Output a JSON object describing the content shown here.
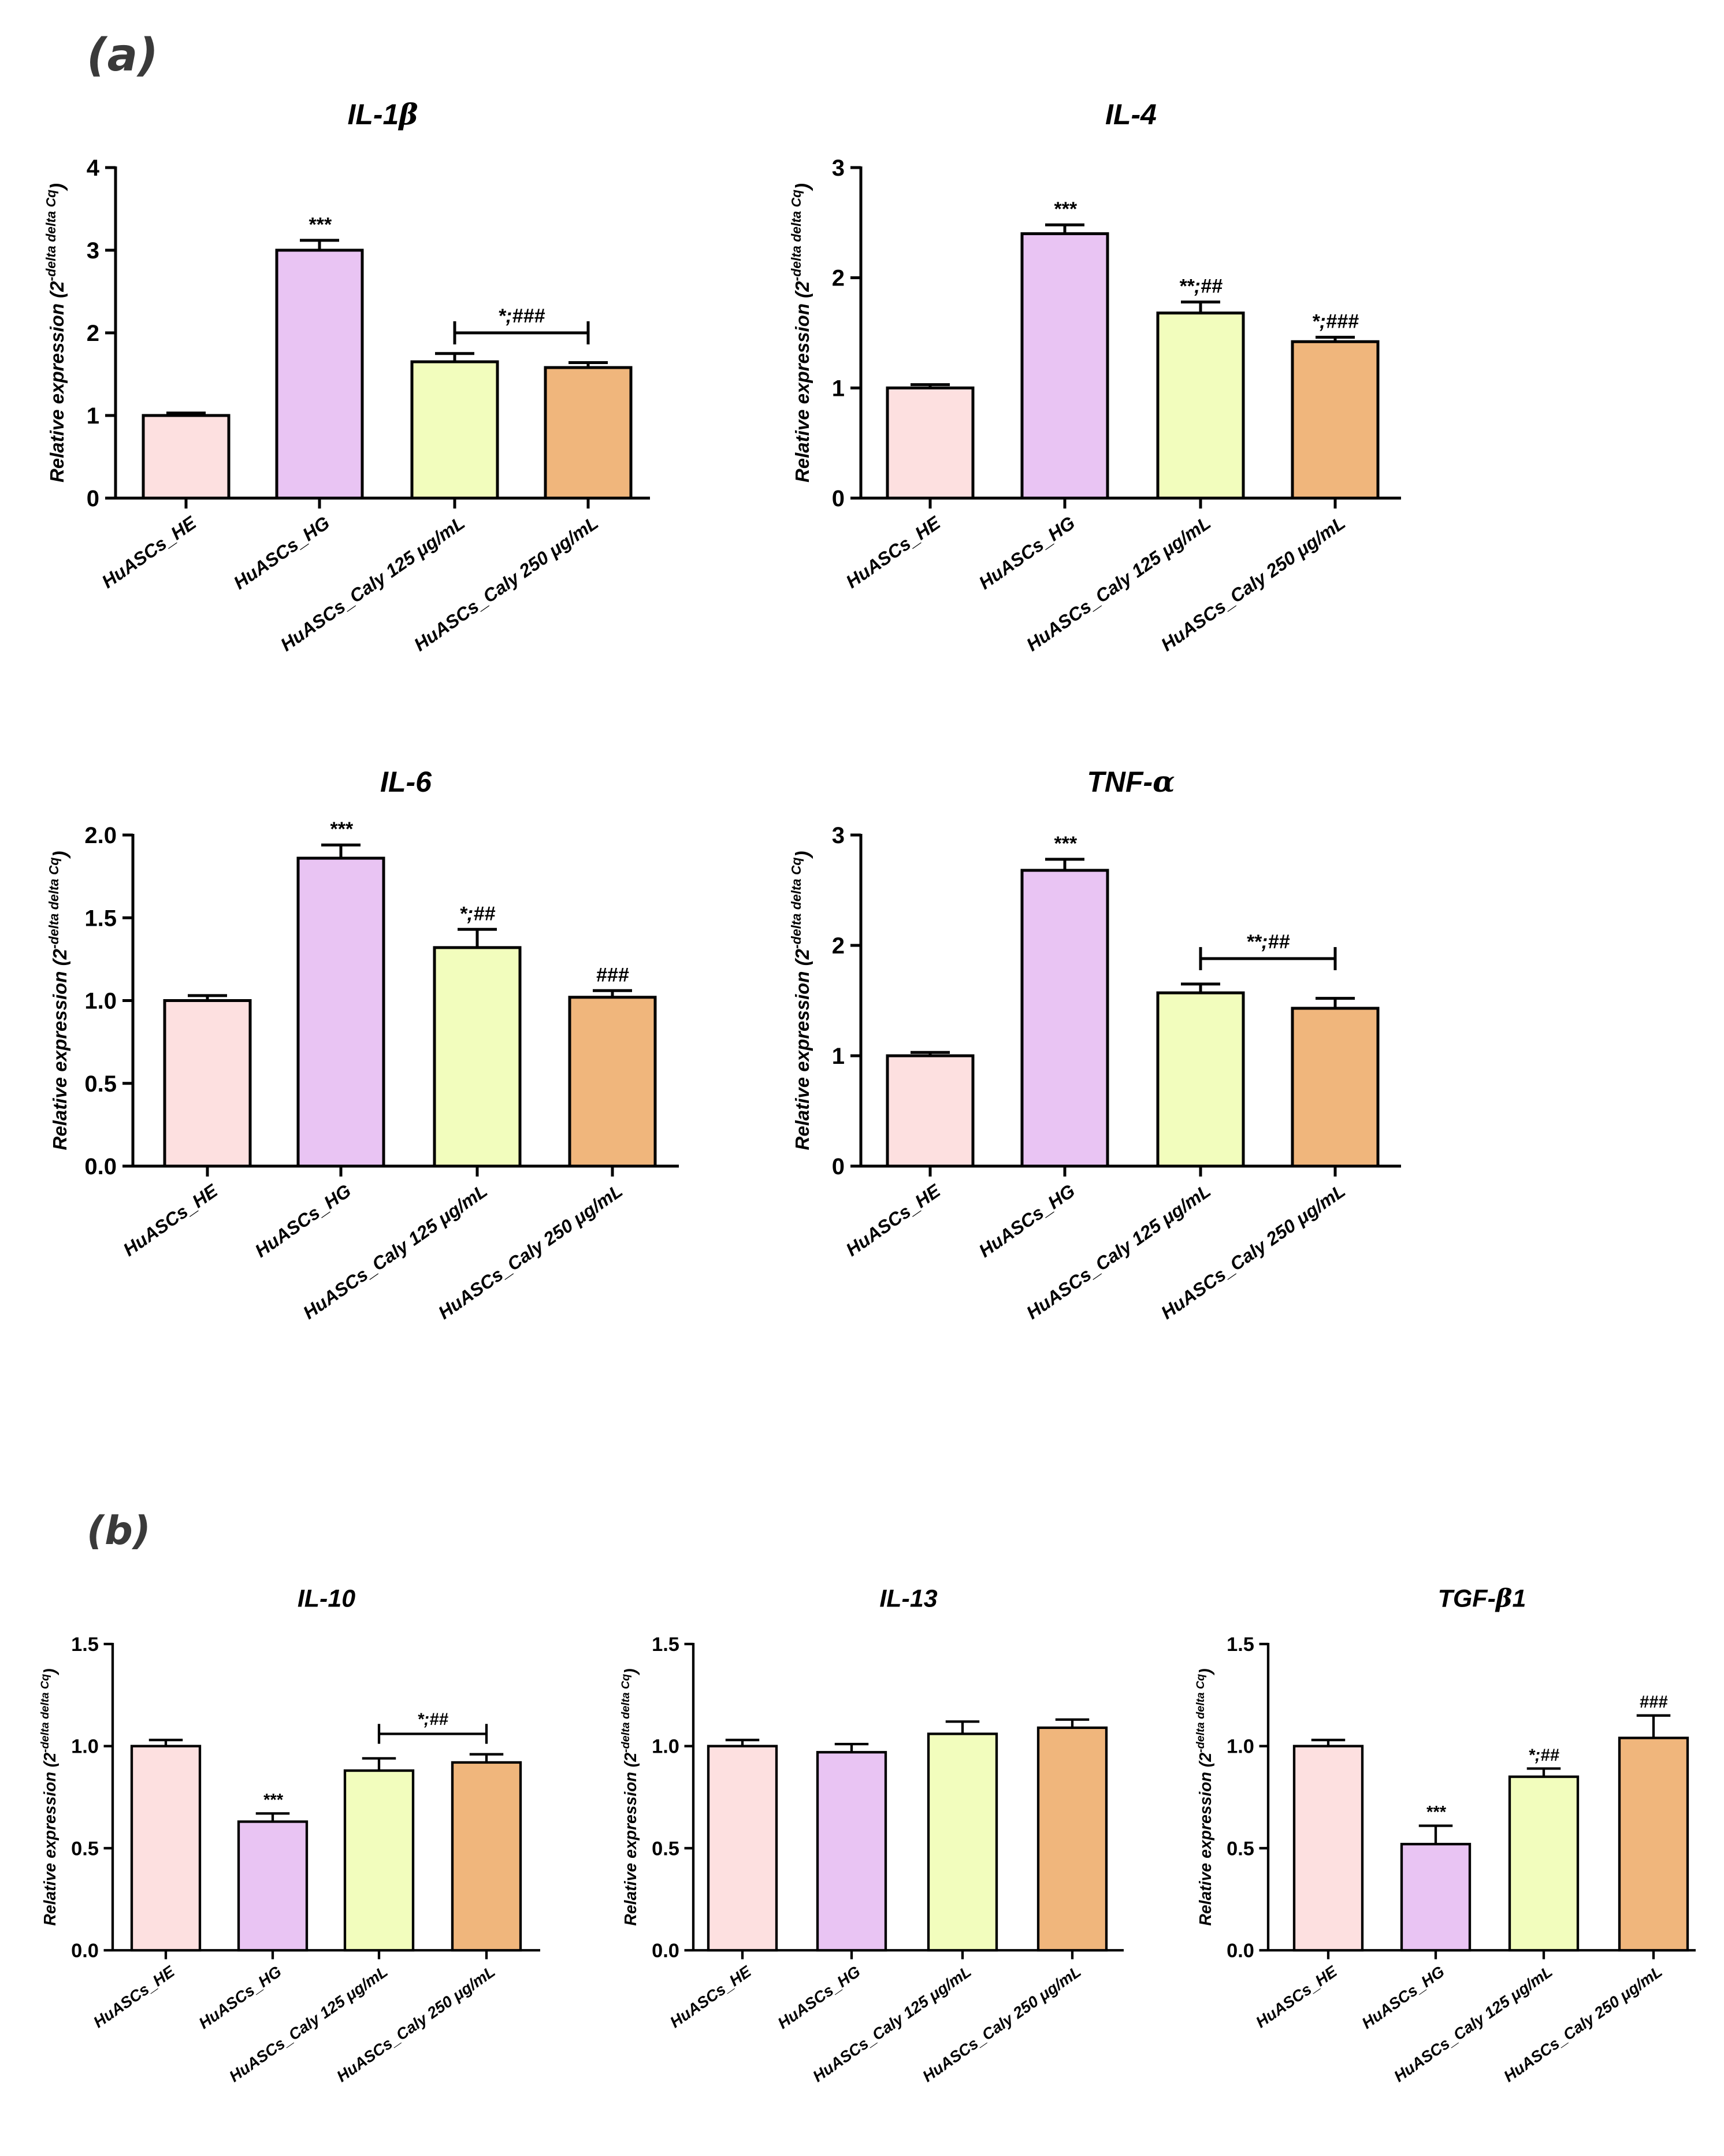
{
  "panels": [
    {
      "label": "(a)"
    },
    {
      "label": "(b)"
    }
  ],
  "colors": {
    "HE": "#fde0e0",
    "HG": "#e9c4f3",
    "C125": "#f2fdbd",
    "C250": "#f0b67c",
    "stroke": "#000000"
  },
  "chart_data": [
    {
      "type": "bar",
      "panel": "(a)",
      "title": "IL-1",
      "title_symbol": "β",
      "title_suffix": "",
      "ylabel_main": "Relative expression (2",
      "ylabel_sup": "-delta delta Cq",
      "ylabel_end": ")",
      "categories": [
        "HuASCs_HE",
        "HuASCs_HG",
        "HuASCs_Caly 125 μg/mL",
        "HuASCs_Caly 250 μg/mL"
      ],
      "values": [
        1.0,
        3.0,
        1.65,
        1.58
      ],
      "errors": [
        0.03,
        0.12,
        0.1,
        0.06
      ],
      "ylim": [
        0,
        4
      ],
      "yticks": [
        "0",
        "1",
        "2",
        "3",
        "4"
      ],
      "annotations": [
        "",
        "***",
        "",
        ""
      ],
      "bracket": {
        "from": 2,
        "to": 3,
        "y": 2.0,
        "text": "*;###"
      }
    },
    {
      "type": "bar",
      "panel": "(a)",
      "title": "IL-4",
      "title_symbol": "",
      "title_suffix": "",
      "ylabel_main": "Relative expression (2",
      "ylabel_sup": "-delta delta Cq",
      "ylabel_end": ")",
      "categories": [
        "HuASCs_HE",
        "HuASCs_HG",
        "HuASCs_Caly 125 μg/mL",
        "HuASCs_Caly 250 μg/mL"
      ],
      "values": [
        1.0,
        2.4,
        1.68,
        1.42
      ],
      "errors": [
        0.03,
        0.08,
        0.1,
        0.04
      ],
      "ylim": [
        0,
        3
      ],
      "yticks": [
        "0",
        "1",
        "2",
        "3"
      ],
      "annotations": [
        "",
        "***",
        "**;##",
        "*;###"
      ],
      "bracket": null
    },
    {
      "type": "bar",
      "panel": "(a)",
      "title": "IL-6",
      "title_symbol": "",
      "title_suffix": "",
      "ylabel_main": "Relative expression (2",
      "ylabel_sup": "-delta delta Cq",
      "ylabel_end": ")",
      "categories": [
        "HuASCs_HE",
        "HuASCs_HG",
        "HuASCs_Caly 125 μg/mL",
        "HuASCs_Caly 250 μg/mL"
      ],
      "values": [
        1.0,
        1.86,
        1.32,
        1.02
      ],
      "errors": [
        0.03,
        0.08,
        0.11,
        0.04
      ],
      "ylim": [
        0,
        2
      ],
      "yticks": [
        "0.0",
        "0.5",
        "1.0",
        "1.5",
        "2.0"
      ],
      "annotations": [
        "",
        "***",
        "*;##",
        "###"
      ],
      "bracket": null
    },
    {
      "type": "bar",
      "panel": "(a)",
      "title": "TNF-",
      "title_symbol": "α",
      "title_suffix": "",
      "ylabel_main": "Relative expression (2",
      "ylabel_sup": "-delta delta Cq",
      "ylabel_end": ")",
      "categories": [
        "HuASCs_HE",
        "HuASCs_HG",
        "HuASCs_Caly 125 μg/mL",
        "HuASCs_Caly 250 μg/mL"
      ],
      "values": [
        1.0,
        2.68,
        1.57,
        1.43
      ],
      "errors": [
        0.03,
        0.1,
        0.08,
        0.09
      ],
      "ylim": [
        0,
        3
      ],
      "yticks": [
        "0",
        "1",
        "2",
        "3"
      ],
      "annotations": [
        "",
        "***",
        "",
        ""
      ],
      "bracket": {
        "from": 2,
        "to": 3,
        "y": 1.88,
        "text": "**;##"
      }
    },
    {
      "type": "bar",
      "panel": "(b)",
      "title": "IL-10",
      "title_symbol": "",
      "title_suffix": "",
      "ylabel_main": "Relative expression (2",
      "ylabel_sup": "-delta delta Cq",
      "ylabel_end": ")",
      "categories": [
        "HuASCs_HE",
        "HuASCs_HG",
        "HuASCs_Caly 125 μg/mL",
        "HuASCs_Caly 250 μg/mL"
      ],
      "values": [
        1.0,
        0.63,
        0.88,
        0.92
      ],
      "errors": [
        0.03,
        0.04,
        0.06,
        0.04
      ],
      "ylim": [
        0,
        1.5
      ],
      "yticks": [
        "0.0",
        "0.5",
        "1.0",
        "1.5"
      ],
      "annotations": [
        "",
        "***",
        "",
        ""
      ],
      "bracket": {
        "from": 2,
        "to": 3,
        "y": 1.06,
        "text": "*;##"
      }
    },
    {
      "type": "bar",
      "panel": "(b)",
      "title": "IL-13",
      "title_symbol": "",
      "title_suffix": "",
      "ylabel_main": "Relative expression (2",
      "ylabel_sup": "-delta delta Cq",
      "ylabel_end": ")",
      "categories": [
        "HuASCs_HE",
        "HuASCs_HG",
        "HuASCs_Caly 125 μg/mL",
        "HuASCs_Caly 250 μg/mL"
      ],
      "values": [
        1.0,
        0.97,
        1.06,
        1.09
      ],
      "errors": [
        0.03,
        0.04,
        0.06,
        0.04
      ],
      "ylim": [
        0,
        1.5
      ],
      "yticks": [
        "0.0",
        "0.5",
        "1.0",
        "1.5"
      ],
      "annotations": [
        "",
        "",
        "",
        ""
      ],
      "bracket": null
    },
    {
      "type": "bar",
      "panel": "(b)",
      "title": "TGF-",
      "title_symbol": "β",
      "title_suffix": "1",
      "ylabel_main": "Relative expression (2",
      "ylabel_sup": "-delta delta Cq",
      "ylabel_end": ")",
      "categories": [
        "HuASCs_HE",
        "HuASCs_HG",
        "HuASCs_Caly 125 μg/mL",
        "HuASCs_Caly 250 μg/mL"
      ],
      "values": [
        1.0,
        0.52,
        0.85,
        1.04
      ],
      "errors": [
        0.03,
        0.09,
        0.04,
        0.11
      ],
      "ylim": [
        0,
        1.5
      ],
      "yticks": [
        "0.0",
        "0.5",
        "1.0",
        "1.5"
      ],
      "annotations": [
        "",
        "***",
        "*;##",
        "###"
      ],
      "bracket": null
    }
  ]
}
